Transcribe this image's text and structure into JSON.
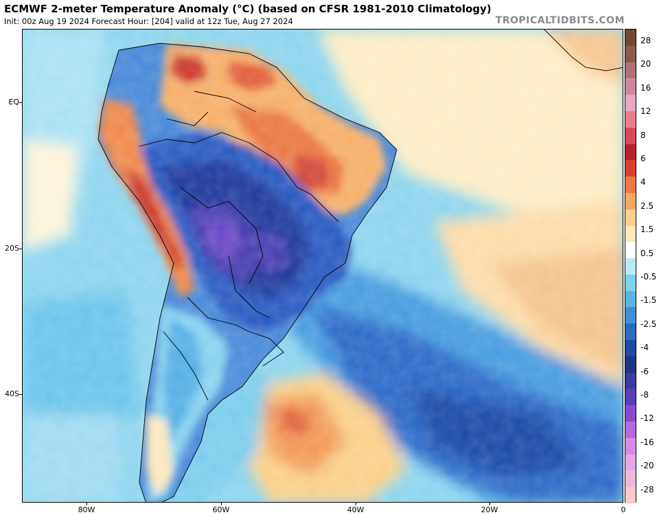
{
  "header": {
    "title": "ECMWF 2-meter Temperature Anomaly (°C) (based on CFSR 1981-2010 Climatology)",
    "subtitle": "Init: 00z Aug 19 2024   Forecast Hour: [204]   valid at 12z Tue, Aug 27 2024",
    "credit": "TROPICALTIDBITS.COM"
  },
  "axes": {
    "lat_labels": [
      "EQ",
      "20S",
      "40S"
    ],
    "lon_labels": [
      "80W",
      "60W",
      "40W",
      "20W",
      "0"
    ]
  },
  "colorbar": {
    "labels": [
      "28",
      "20",
      "16",
      "12",
      "8",
      "6",
      "4",
      "2.5",
      "1.5",
      "0.5",
      "-0.5",
      "-1.5",
      "-2.5",
      "-4",
      "-6",
      "-8",
      "-12",
      "-16",
      "-20",
      "-28"
    ],
    "colors": [
      "#6e4a2e",
      "#8c5a4e",
      "#b46e78",
      "#cc8aa0",
      "#e6a8c0",
      "#ec7c8c",
      "#d84858",
      "#b8222c",
      "#d8402c",
      "#ee7840",
      "#f6a860",
      "#fad08a",
      "#fde8b8",
      "#ffffff",
      "#b8ecf4",
      "#7cd4ec",
      "#56b6e8",
      "#3e90d8",
      "#2a6cc0",
      "#1c4aa4",
      "#1e3488",
      "#3a3aa0",
      "#5c3cb8",
      "#8a48d0",
      "#b868e0",
      "#d888e8",
      "#e8a4e4",
      "#f0b8d8",
      "#f8c8cc"
    ]
  }
}
